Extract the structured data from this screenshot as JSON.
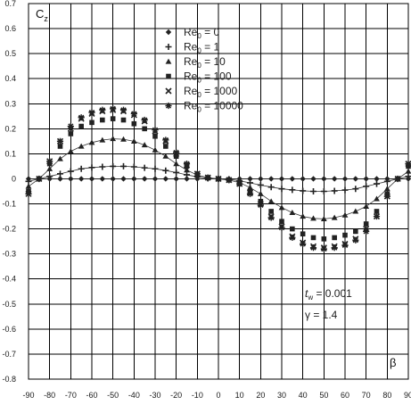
{
  "chart_data": {
    "type": "scatter",
    "ylabel": "Cz",
    "xlabel": "β",
    "xlim": [
      -90,
      90
    ],
    "ylim": [
      -0.8,
      0.7
    ],
    "x_ticks": [
      -90,
      -80,
      -70,
      -60,
      -50,
      -40,
      -30,
      -20,
      -10,
      0,
      10,
      20,
      30,
      40,
      50,
      60,
      70,
      80,
      90
    ],
    "y_ticks": [
      0.7,
      0.6,
      0.5,
      0.4,
      0.3,
      0.2,
      0.1,
      0,
      -0.1,
      -0.2,
      -0.3,
      -0.4,
      -0.5,
      -0.6,
      -0.7,
      -0.8
    ],
    "x_tick_labels": [
      "-90",
      "-80",
      "-70",
      "-60",
      "-50",
      "-40",
      "-30",
      "-20",
      "-10",
      "0",
      "10",
      "20",
      "30",
      "40",
      "50",
      "60",
      "70",
      "80",
      "90"
    ],
    "y_tick_labels": [
      "0.7",
      "0.6",
      "0.5",
      "0.4",
      "0.3",
      "0.2",
      "0.1",
      "0",
      "-0.1",
      "-0.2",
      "-0.3",
      "-0.4",
      "-0.5",
      "-0.6",
      "-0.7",
      "-0.8"
    ],
    "grid": true,
    "legend_position": "top-center",
    "annotations": {
      "tw": "0.001",
      "gamma": "γ = 1.4"
    },
    "x": [
      -90,
      -85,
      -80,
      -75,
      -70,
      -65,
      -60,
      -55,
      -50,
      -45,
      -40,
      -35,
      -30,
      -25,
      -20,
      -15,
      -10,
      -5,
      0,
      5,
      10,
      15,
      20,
      25,
      30,
      35,
      40,
      45,
      50,
      55,
      60,
      65,
      70,
      75,
      80,
      85,
      90
    ],
    "series": [
      {
        "name": "Re0 = 0",
        "marker": "diamond",
        "values": [
          0,
          0,
          0,
          0,
          0,
          0,
          0,
          0,
          0,
          0,
          0,
          0,
          0,
          0,
          0,
          0,
          0,
          0,
          0,
          0,
          0,
          0,
          0,
          0,
          0,
          0,
          0,
          0,
          0,
          0,
          0,
          0,
          0,
          0,
          0,
          0,
          0
        ]
      },
      {
        "name": "Re0 = 1",
        "marker": "plus",
        "values": [
          -0.01,
          0,
          0.01,
          0.02,
          0.03,
          0.04,
          0.045,
          0.048,
          0.05,
          0.05,
          0.048,
          0.044,
          0.04,
          0.033,
          0.025,
          0.016,
          0.008,
          0.002,
          0,
          -0.002,
          -0.008,
          -0.016,
          -0.025,
          -0.033,
          -0.04,
          -0.044,
          -0.048,
          -0.05,
          -0.05,
          -0.048,
          -0.045,
          -0.04,
          -0.03,
          -0.02,
          -0.01,
          0,
          0.01
        ]
      },
      {
        "name": "Re0 = 10",
        "marker": "triangle",
        "values": [
          -0.03,
          0,
          0.04,
          0.08,
          0.11,
          0.13,
          0.145,
          0.155,
          0.16,
          0.158,
          0.15,
          0.135,
          0.115,
          0.09,
          0.06,
          0.035,
          0.015,
          0.005,
          0,
          -0.005,
          -0.015,
          -0.035,
          -0.06,
          -0.09,
          -0.115,
          -0.135,
          -0.15,
          -0.158,
          -0.16,
          -0.155,
          -0.145,
          -0.13,
          -0.11,
          -0.08,
          -0.04,
          0,
          0.03
        ]
      },
      {
        "name": "Re0 = 100",
        "marker": "square",
        "values": [
          -0.05,
          0,
          0.06,
          0.13,
          0.18,
          0.21,
          0.225,
          0.235,
          0.24,
          0.235,
          0.22,
          0.2,
          0.17,
          0.13,
          0.09,
          0.05,
          0.02,
          0.005,
          0,
          -0.005,
          -0.02,
          -0.05,
          -0.09,
          -0.13,
          -0.17,
          -0.2,
          -0.22,
          -0.235,
          -0.24,
          -0.235,
          -0.225,
          -0.21,
          -0.18,
          -0.13,
          -0.06,
          0,
          0.05
        ]
      },
      {
        "name": "Re0 = 1000",
        "marker": "x",
        "values": [
          -0.06,
          0,
          0.07,
          0.15,
          0.2,
          0.24,
          0.26,
          0.27,
          0.275,
          0.27,
          0.255,
          0.23,
          0.19,
          0.15,
          0.1,
          0.055,
          0.02,
          0.005,
          0,
          -0.005,
          -0.02,
          -0.055,
          -0.1,
          -0.15,
          -0.19,
          -0.23,
          -0.255,
          -0.27,
          -0.275,
          -0.27,
          -0.26,
          -0.24,
          -0.2,
          -0.15,
          -0.07,
          0,
          0.06
        ]
      },
      {
        "name": "Re0 = 10000",
        "marker": "star",
        "values": [
          -0.06,
          0,
          0.07,
          0.15,
          0.21,
          0.245,
          0.265,
          0.275,
          0.28,
          0.275,
          0.26,
          0.235,
          0.195,
          0.155,
          0.105,
          0.06,
          0.02,
          0.005,
          0,
          -0.005,
          -0.02,
          -0.06,
          -0.105,
          -0.155,
          -0.195,
          -0.235,
          -0.26,
          -0.275,
          -0.28,
          -0.275,
          -0.265,
          -0.245,
          -0.21,
          -0.15,
          -0.07,
          0,
          0.06
        ]
      }
    ],
    "legend_labels": [
      {
        "main": "Re",
        "sub": "0",
        "rest": " = 0"
      },
      {
        "main": "Re",
        "sub": "0",
        "rest": " = 1"
      },
      {
        "main": "Re",
        "sub": "0",
        "rest": " = 10"
      },
      {
        "main": "Re",
        "sub": "0",
        "rest": " = 100"
      },
      {
        "main": "Re",
        "sub": "0",
        "rest": " = 1000"
      },
      {
        "main": "Re",
        "sub": "0",
        "rest": " = 10000"
      }
    ],
    "ylabel_parts": {
      "main": "C",
      "sub": "z"
    },
    "note_tw_parts": {
      "main": "t",
      "sub": "w",
      "rest": " = 0.001"
    }
  }
}
